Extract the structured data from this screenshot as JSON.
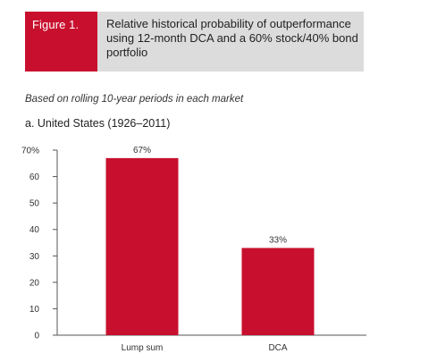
{
  "figure": {
    "label": "Figure 1.",
    "title": "Relative historical probability of outperformance using 12-month DCA and a 60% stock/40% bond portfolio"
  },
  "subtitle": "Based on rolling 10-year periods in each market",
  "panel_title": "a. United States (1926–2011)",
  "colors": {
    "figure_label_bg": "#c8102e",
    "title_bg": "#dcdcdc",
    "bar": "#c8102e"
  },
  "chart_data": {
    "type": "bar",
    "title": "a. United States (1926–2011)",
    "categories": [
      "Lump sum",
      "DCA"
    ],
    "values": [
      67,
      33
    ],
    "data_labels": [
      "67%",
      "33%"
    ],
    "ylim": [
      0,
      70
    ],
    "yticks": [
      0,
      10,
      20,
      30,
      40,
      50,
      60,
      70
    ],
    "ytick_labels": [
      "0",
      "10",
      "20",
      "30",
      "40",
      "50",
      "60",
      "70%"
    ],
    "xlabel": "",
    "ylabel": "",
    "grid": false,
    "legend": "none"
  }
}
